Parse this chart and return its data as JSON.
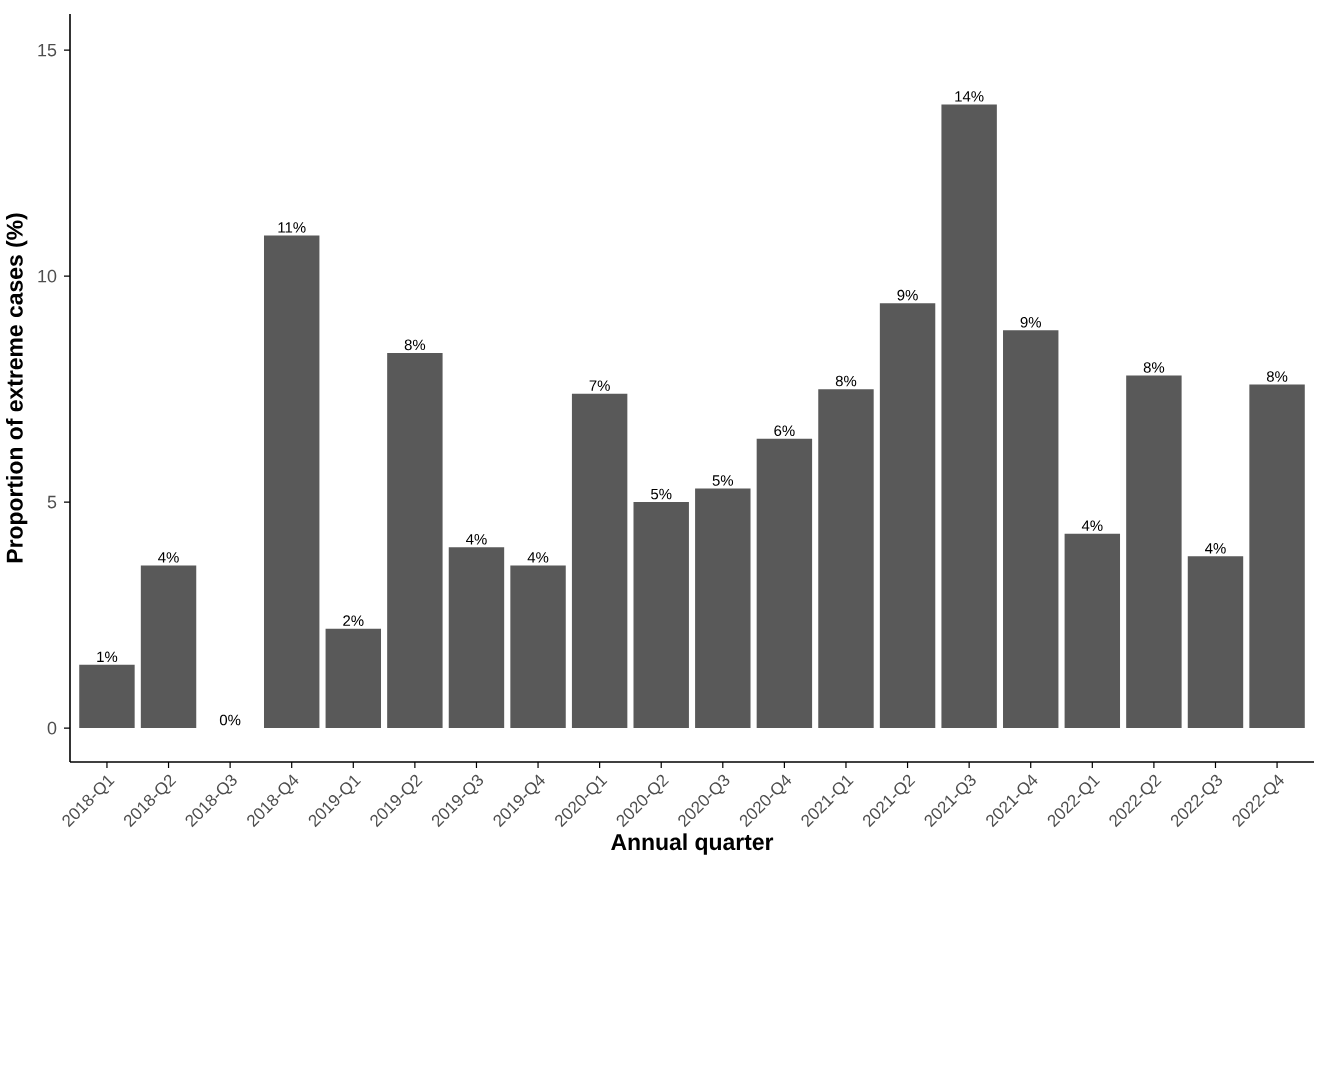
{
  "chart_data": {
    "type": "bar",
    "xlabel": "Annual quarter",
    "ylabel": "Proportion of extreme cases (%)",
    "categories": [
      "2018-Q1",
      "2018-Q2",
      "2018-Q3",
      "2018-Q4",
      "2019-Q1",
      "2019-Q2",
      "2019-Q3",
      "2019-Q4",
      "2020-Q1",
      "2020-Q2",
      "2020-Q3",
      "2020-Q4",
      "2021-Q1",
      "2021-Q2",
      "2021-Q3",
      "2021-Q4",
      "2022-Q1",
      "2022-Q2",
      "2022-Q3",
      "2022-Q4"
    ],
    "values": [
      1.4,
      3.6,
      0,
      10.9,
      2.2,
      8.3,
      4.0,
      3.6,
      7.4,
      5.0,
      5.3,
      6.4,
      7.5,
      9.4,
      13.8,
      8.8,
      4.3,
      7.8,
      3.8,
      7.6
    ],
    "value_labels": [
      "1%",
      "4%",
      "0%",
      "11%",
      "2%",
      "8%",
      "4%",
      "4%",
      "7%",
      "5%",
      "5%",
      "6%",
      "8%",
      "9%",
      "14%",
      "9%",
      "4%",
      "8%",
      "4%",
      "8%"
    ],
    "color": "#595959",
    "ylim": [
      -0.75,
      15.8
    ],
    "yticks": [
      0,
      5,
      10,
      15
    ]
  }
}
